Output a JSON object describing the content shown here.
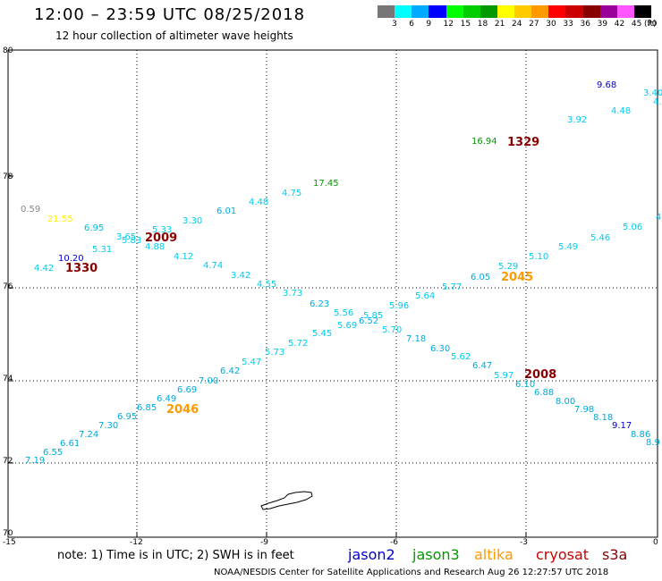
{
  "header": {
    "title": "12:00 – 23:59 UTC 08/25/2018",
    "subtitle": "12 hour collection of altimeter wave heights"
  },
  "colorbar": {
    "colors": [
      "#777777",
      "#00ffff",
      "#00aaff",
      "#0000ff",
      "#00ff00",
      "#00cc00",
      "#009900",
      "#ffff00",
      "#ffcc00",
      "#ff9900",
      "#ff0000",
      "#cc0000",
      "#880000",
      "#990099",
      "#ff55ff",
      "#000000"
    ],
    "labels": [
      "3",
      "6",
      "9",
      "12",
      "15",
      "18",
      "21",
      "24",
      "27",
      "30",
      "33",
      "36",
      "39",
      "42",
      "45",
      "70",
      "(ft)"
    ]
  },
  "axes": {
    "lat_labels": [
      "80",
      "78",
      "76",
      "74",
      "72",
      "70"
    ],
    "lon_labels": [
      "-15",
      "-12",
      "-9",
      "-6",
      "-3",
      "0"
    ]
  },
  "wave_labels": [
    {
      "t": "0.59",
      "c": "#888888"
    },
    {
      "t": "21.55",
      "c": "#ffee00"
    },
    {
      "t": "6.95",
      "c": "#00bbdd"
    },
    {
      "t": "5.31",
      "c": "#00ccee"
    },
    {
      "t": "10.20",
      "c": "#0000cc"
    },
    {
      "t": "4.42",
      "c": "#00ccee"
    },
    {
      "t": "3.65",
      "c": "#00ccee"
    },
    {
      "t": "5.83",
      "c": "#00ccee"
    },
    {
      "t": "5.33",
      "c": "#00ccee"
    },
    {
      "t": "4.88",
      "c": "#00ccee"
    },
    {
      "t": "3.30",
      "c": "#00ccee"
    },
    {
      "t": "4.12",
      "c": "#00ccee"
    },
    {
      "t": "6.01",
      "c": "#00aadd"
    },
    {
      "t": "4.74",
      "c": "#00ccee"
    },
    {
      "t": "4.48",
      "c": "#00ccee"
    },
    {
      "t": "3.42",
      "c": "#00ccee"
    },
    {
      "t": "4.75",
      "c": "#00ccee"
    },
    {
      "t": "4.55",
      "c": "#00ccee"
    },
    {
      "t": "17.45",
      "c": "#009900"
    },
    {
      "t": "3.73",
      "c": "#00ccee"
    },
    {
      "t": "6.23",
      "c": "#00aadd"
    },
    {
      "t": "5.56",
      "c": "#00ccee"
    },
    {
      "t": "5.85",
      "c": "#00ccee"
    },
    {
      "t": "5.69",
      "c": "#00ccee"
    },
    {
      "t": "6.52",
      "c": "#00aadd"
    },
    {
      "t": "5.70",
      "c": "#00ccee"
    },
    {
      "t": "5.96",
      "c": "#00ccee"
    },
    {
      "t": "7.18",
      "c": "#00aadd"
    },
    {
      "t": "5.64",
      "c": "#00ccee"
    },
    {
      "t": "6.30",
      "c": "#00aadd"
    },
    {
      "t": "5.77",
      "c": "#00ccee"
    },
    {
      "t": "5.62",
      "c": "#00ccee"
    },
    {
      "t": "6.05",
      "c": "#00aadd"
    },
    {
      "t": "6.47",
      "c": "#00aadd"
    },
    {
      "t": "5.29",
      "c": "#00ccee"
    },
    {
      "t": "5.97",
      "c": "#00ccee"
    },
    {
      "t": "5.10",
      "c": "#00ccee"
    },
    {
      "t": "6.10",
      "c": "#00aadd"
    },
    {
      "t": "6.88",
      "c": "#00aadd"
    },
    {
      "t": "5.49",
      "c": "#00ccee"
    },
    {
      "t": "8.00",
      "c": "#00aadd"
    },
    {
      "t": "5.46",
      "c": "#00ccee"
    },
    {
      "t": "7.98",
      "c": "#00aadd"
    },
    {
      "t": "5.06",
      "c": "#00ccee"
    },
    {
      "t": "8.18",
      "c": "#00aadd"
    },
    {
      "t": "9.17",
      "c": "#0000cc"
    },
    {
      "t": "8.86",
      "c": "#00aadd"
    },
    {
      "t": "8.9",
      "c": "#00aadd"
    },
    {
      "t": "7.19",
      "c": "#00aadd"
    },
    {
      "t": "6.55",
      "c": "#00aadd"
    },
    {
      "t": "6.61",
      "c": "#00aadd"
    },
    {
      "t": "7.24",
      "c": "#00aadd"
    },
    {
      "t": "7.30",
      "c": "#00aadd"
    },
    {
      "t": "6.95",
      "c": "#00aadd"
    },
    {
      "t": "6.85",
      "c": "#00aadd"
    },
    {
      "t": "6.49",
      "c": "#00aadd"
    },
    {
      "t": "6.69",
      "c": "#00aadd"
    },
    {
      "t": "7.00",
      "c": "#00aadd"
    },
    {
      "t": "6.42",
      "c": "#00aadd"
    },
    {
      "t": "5.47",
      "c": "#00ccee"
    },
    {
      "t": "5.73",
      "c": "#00ccee"
    },
    {
      "t": "5.72",
      "c": "#00ccee"
    },
    {
      "t": "5.45",
      "c": "#00ccee"
    },
    {
      "t": "16.94",
      "c": "#009900"
    },
    {
      "t": "3.92",
      "c": "#00ccee"
    },
    {
      "t": "4.48",
      "c": "#00ccee"
    },
    {
      "t": "9.68",
      "c": "#0000cc"
    },
    {
      "t": "3.40",
      "c": "#00ccee"
    },
    {
      "t": "4.",
      "c": "#00ccee"
    },
    {
      "t": "4",
      "c": "#00ccee"
    }
  ],
  "pass_labels": [
    {
      "t": "2009",
      "c": "#880000"
    },
    {
      "t": "1330",
      "c": "#880000"
    },
    {
      "t": "1329",
      "c": "#880000"
    },
    {
      "t": "2045",
      "c": "#ff9900"
    },
    {
      "t": "2008",
      "c": "#880000"
    },
    {
      "t": "2046",
      "c": "#ff9900"
    }
  ],
  "footer": {
    "note": "note:  1) Time is in UTC;  2) SWH is in feet",
    "legend": [
      {
        "t": "jason2",
        "c": "#0000cc"
      },
      {
        "t": "jason3",
        "c": "#009900"
      },
      {
        "t": "altika",
        "c": "#ff9900"
      },
      {
        "t": "cryosat",
        "c": "#cc0000"
      },
      {
        "t": "s3a",
        "c": "#880000"
      }
    ],
    "credit": "NOAA/NESDIS Center for Satellite Applications and Research     Aug 26 12:27:57 UTC 2018"
  }
}
